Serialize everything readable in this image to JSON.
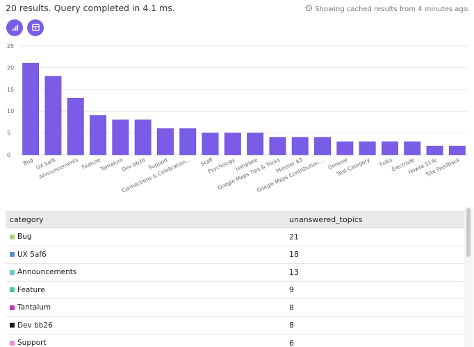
{
  "header": {
    "summary": "20 results. Query completed in 4.1 ms.",
    "cached_note": "Showing cached results from 4 minutes ago.",
    "cached_icon": "history-icon"
  },
  "toggles": [
    {
      "name": "chart-view-toggle",
      "icon": "bar-chart-icon"
    },
    {
      "name": "table-view-toggle",
      "icon": "table-icon"
    }
  ],
  "colors": {
    "accent": "#7b5ce6",
    "bar": "#7b5ce6",
    "grid": "#e6e6e6"
  },
  "chart_data": {
    "type": "bar",
    "categories": [
      "Bug",
      "UX 5af6",
      "Announcements",
      "Feature",
      "Tantalum",
      "Dev bb26",
      "Support",
      "Connections & Celebration...",
      "Staff",
      "Psychology",
      "template",
      "Google Maps Tips & Tricks",
      "Messier 83",
      "Google Maps Contribution ...",
      "General",
      "Test Category",
      "Folks",
      "Electrode",
      "Howto 514c",
      "Site Feedback"
    ],
    "values": [
      21,
      18,
      13,
      9,
      8,
      8,
      6,
      6,
      5,
      5,
      5,
      4,
      4,
      4,
      3,
      3,
      3,
      3,
      2,
      2
    ],
    "yticks": [
      "0",
      "5",
      "10",
      "15",
      "20",
      "25"
    ],
    "ylim": [
      0,
      25
    ],
    "grid": true,
    "xlabel": "",
    "ylabel": ""
  },
  "table": {
    "columns": [
      "category",
      "unanswered_topics"
    ],
    "rows": [
      {
        "category": "Bug",
        "value": "21",
        "color": "#a8d26e"
      },
      {
        "category": "UX 5af6",
        "value": "18",
        "color": "#5b8fd0"
      },
      {
        "category": "Announcements",
        "value": "13",
        "color": "#6cc9c6"
      },
      {
        "category": "Feature",
        "value": "9",
        "color": "#4ec9a0"
      },
      {
        "category": "Tantalum",
        "value": "8",
        "color": "#c339b4"
      },
      {
        "category": "Dev bb26",
        "value": "8",
        "color": "#1a1a1a"
      },
      {
        "category": "Support",
        "value": "6",
        "color": "#f08bd8"
      }
    ]
  }
}
